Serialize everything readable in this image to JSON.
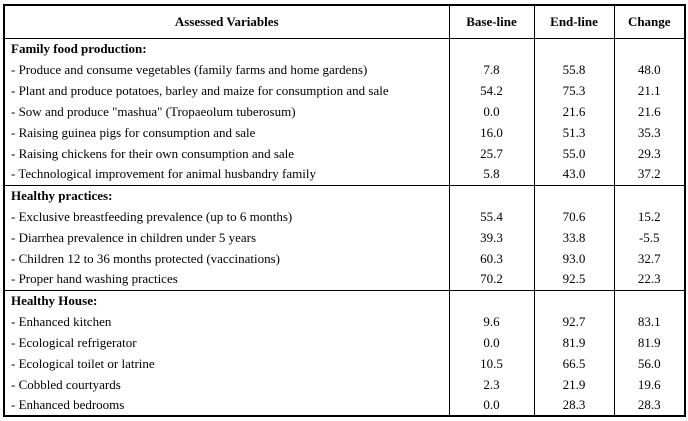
{
  "table": {
    "columns": [
      "Assessed Variables",
      "Base-line",
      "End-line",
      "Change"
    ],
    "sections": [
      {
        "title": "Family food production:",
        "rows": [
          {
            "label": "- Produce and consume vegetables (family farms and home gardens)",
            "baseline": "7.8",
            "endline": "55.8",
            "change": "48.0"
          },
          {
            "label": "- Plant and produce potatoes, barley and maize for consumption and sale",
            "baseline": "54.2",
            "endline": "75.3",
            "change": "21.1"
          },
          {
            "label": "- Sow and produce \"mashua\" (Tropaeolum tuberosum)",
            "baseline": "0.0",
            "endline": "21.6",
            "change": "21.6"
          },
          {
            "label": "- Raising guinea pigs for consumption and sale",
            "baseline": "16.0",
            "endline": "51.3",
            "change": "35.3"
          },
          {
            "label": "- Raising chickens for their own consumption and sale",
            "baseline": "25.7",
            "endline": "55.0",
            "change": "29.3"
          },
          {
            "label": "- Technological improvement for animal husbandry family",
            "baseline": "5.8",
            "endline": "43.0",
            "change": "37.2"
          }
        ]
      },
      {
        "title": "Healthy practices:",
        "rows": [
          {
            "label": "- Exclusive breastfeeding prevalence (up to 6 months)",
            "baseline": "55.4",
            "endline": "70.6",
            "change": "15.2"
          },
          {
            "label": "- Diarrhea prevalence in children under 5 years",
            "baseline": "39.3",
            "endline": "33.8",
            "change": "-5.5"
          },
          {
            "label": "- Children 12 to 36 months protected (vaccinations)",
            "baseline": "60.3",
            "endline": "93.0",
            "change": "32.7"
          },
          {
            "label": "- Proper hand washing practices",
            "baseline": "70.2",
            "endline": "92.5",
            "change": "22.3"
          }
        ]
      },
      {
        "title": "Healthy House:",
        "rows": [
          {
            "label": "- Enhanced kitchen",
            "baseline": "9.6",
            "endline": "92.7",
            "change": "83.1"
          },
          {
            "label": "- Ecological refrigerator",
            "baseline": "0.0",
            "endline": "81.9",
            "change": "81.9"
          },
          {
            "label": "- Ecological toilet or latrine",
            "baseline": "10.5",
            "endline": "66.5",
            "change": "56.0"
          },
          {
            "label": "- Cobbled courtyards",
            "baseline": "2.3",
            "endline": "21.9",
            "change": "19.6"
          },
          {
            "label": "- Enhanced bedrooms",
            "baseline": "0.0",
            "endline": "28.3",
            "change": "28.3"
          }
        ]
      }
    ]
  }
}
